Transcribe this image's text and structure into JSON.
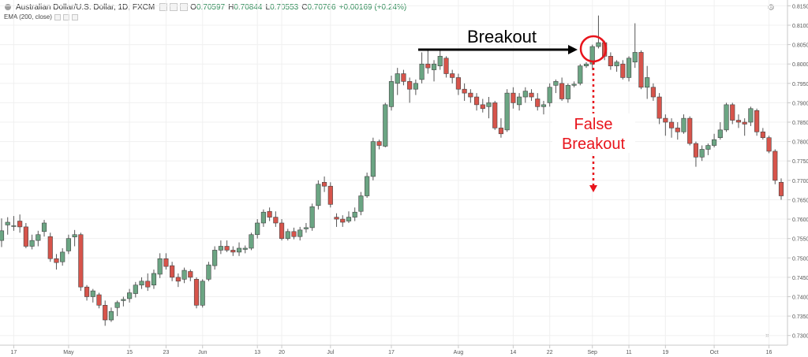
{
  "header": {
    "symbol": "Australian Dollar/U.S. Dollar, 1D, FXCM",
    "o_label": "O",
    "o": "0.70597",
    "h_label": "H",
    "h": "0.70844",
    "l_label": "L",
    "l": "0.70553",
    "c_label": "C",
    "c": "0.70766",
    "change": "+0.00169 (+0.24%)"
  },
  "indicator": {
    "label": "EMA (200, close)"
  },
  "icons": {
    "settings": "gear-icon",
    "scroll": "double-chevron-right-icon"
  },
  "colors": {
    "up": "#6ba583",
    "down": "#d7544b",
    "arrow_black": "#000000",
    "arrow_red": "#e8141c",
    "grid": "#f0f0f0"
  },
  "chart_data": {
    "type": "candlestick",
    "ylim": [
      0.7275,
      0.8165
    ],
    "yticks": [
      "0.81500",
      "0.81000",
      "0.80500",
      "0.80000",
      "0.79500",
      "0.79000",
      "0.78500",
      "0.78000",
      "0.77500",
      "0.77000",
      "0.76500",
      "0.76000",
      "0.75500",
      "0.75000",
      "0.74500",
      "0.74000",
      "0.73500",
      "0.73000"
    ],
    "xticks": [
      "17",
      "May",
      "15",
      "23",
      "Jun",
      "13",
      "20",
      "Jul",
      "17",
      "Aug",
      "14",
      "22",
      "Sep",
      "11",
      "19",
      "Oct",
      "16",
      "24"
    ],
    "annotations": [
      {
        "text": "Breakout"
      },
      {
        "text_lines": [
          "False",
          "Breakout"
        ]
      }
    ],
    "candles": [
      {
        "o": 0.7545,
        "h": 0.7602,
        "l": 0.7528,
        "c": 0.757
      },
      {
        "o": 0.7585,
        "h": 0.7605,
        "l": 0.756,
        "c": 0.7592
      },
      {
        "o": 0.7581,
        "h": 0.7608,
        "l": 0.757,
        "c": 0.7583
      },
      {
        "o": 0.7595,
        "h": 0.7612,
        "l": 0.7565,
        "c": 0.758
      },
      {
        "o": 0.758,
        "h": 0.759,
        "l": 0.7525,
        "c": 0.753
      },
      {
        "o": 0.753,
        "h": 0.756,
        "l": 0.7522,
        "c": 0.7545
      },
      {
        "o": 0.7545,
        "h": 0.757,
        "l": 0.753,
        "c": 0.756
      },
      {
        "o": 0.7568,
        "h": 0.7598,
        "l": 0.7555,
        "c": 0.759
      },
      {
        "o": 0.7555,
        "h": 0.7565,
        "l": 0.749,
        "c": 0.7498
      },
      {
        "o": 0.7498,
        "h": 0.751,
        "l": 0.747,
        "c": 0.7488
      },
      {
        "o": 0.749,
        "h": 0.7525,
        "l": 0.748,
        "c": 0.7515
      },
      {
        "o": 0.7518,
        "h": 0.756,
        "l": 0.751,
        "c": 0.755
      },
      {
        "o": 0.7554,
        "h": 0.7572,
        "l": 0.753,
        "c": 0.756
      },
      {
        "o": 0.756,
        "h": 0.7565,
        "l": 0.7415,
        "c": 0.7425
      },
      {
        "o": 0.7425,
        "h": 0.743,
        "l": 0.739,
        "c": 0.74
      },
      {
        "o": 0.74,
        "h": 0.742,
        "l": 0.7385,
        "c": 0.7415
      },
      {
        "o": 0.7405,
        "h": 0.741,
        "l": 0.737,
        "c": 0.7378
      },
      {
        "o": 0.7378,
        "h": 0.739,
        "l": 0.7325,
        "c": 0.734
      },
      {
        "o": 0.734,
        "h": 0.7372,
        "l": 0.7335,
        "c": 0.7362
      },
      {
        "o": 0.7372,
        "h": 0.739,
        "l": 0.735,
        "c": 0.7385
      },
      {
        "o": 0.739,
        "h": 0.74,
        "l": 0.7375,
        "c": 0.7393
      },
      {
        "o": 0.7395,
        "h": 0.742,
        "l": 0.7385,
        "c": 0.741
      },
      {
        "o": 0.7408,
        "h": 0.7438,
        "l": 0.7398,
        "c": 0.743
      },
      {
        "o": 0.743,
        "h": 0.745,
        "l": 0.742,
        "c": 0.744
      },
      {
        "o": 0.744,
        "h": 0.746,
        "l": 0.7415,
        "c": 0.7425
      },
      {
        "o": 0.743,
        "h": 0.747,
        "l": 0.742,
        "c": 0.746
      },
      {
        "o": 0.7458,
        "h": 0.7512,
        "l": 0.7448,
        "c": 0.7498
      },
      {
        "o": 0.7498,
        "h": 0.7512,
        "l": 0.747,
        "c": 0.7478
      },
      {
        "o": 0.748,
        "h": 0.749,
        "l": 0.744,
        "c": 0.745
      },
      {
        "o": 0.745,
        "h": 0.746,
        "l": 0.7425,
        "c": 0.744
      },
      {
        "o": 0.7445,
        "h": 0.7475,
        "l": 0.7435,
        "c": 0.7468
      },
      {
        "o": 0.7465,
        "h": 0.747,
        "l": 0.744,
        "c": 0.745
      },
      {
        "o": 0.7445,
        "h": 0.745,
        "l": 0.737,
        "c": 0.7378
      },
      {
        "o": 0.7378,
        "h": 0.7445,
        "l": 0.7372,
        "c": 0.744
      },
      {
        "o": 0.7445,
        "h": 0.749,
        "l": 0.744,
        "c": 0.7482
      },
      {
        "o": 0.748,
        "h": 0.753,
        "l": 0.747,
        "c": 0.752
      },
      {
        "o": 0.752,
        "h": 0.7545,
        "l": 0.751,
        "c": 0.753
      },
      {
        "o": 0.753,
        "h": 0.7545,
        "l": 0.7515,
        "c": 0.752
      },
      {
        "o": 0.752,
        "h": 0.753,
        "l": 0.7505,
        "c": 0.7515
      },
      {
        "o": 0.7515,
        "h": 0.754,
        "l": 0.7505,
        "c": 0.7525
      },
      {
        "o": 0.7522,
        "h": 0.7532,
        "l": 0.7512,
        "c": 0.7525
      },
      {
        "o": 0.7525,
        "h": 0.7565,
        "l": 0.752,
        "c": 0.756
      },
      {
        "o": 0.756,
        "h": 0.76,
        "l": 0.755,
        "c": 0.759
      },
      {
        "o": 0.759,
        "h": 0.7625,
        "l": 0.758,
        "c": 0.7618
      },
      {
        "o": 0.762,
        "h": 0.763,
        "l": 0.7595,
        "c": 0.7605
      },
      {
        "o": 0.7605,
        "h": 0.762,
        "l": 0.758,
        "c": 0.759
      },
      {
        "o": 0.759,
        "h": 0.76,
        "l": 0.7545,
        "c": 0.755
      },
      {
        "o": 0.755,
        "h": 0.7575,
        "l": 0.7545,
        "c": 0.7568
      },
      {
        "o": 0.7568,
        "h": 0.7578,
        "l": 0.7548,
        "c": 0.7555
      },
      {
        "o": 0.7555,
        "h": 0.758,
        "l": 0.7545,
        "c": 0.7572
      },
      {
        "o": 0.7575,
        "h": 0.759,
        "l": 0.7565,
        "c": 0.7578
      },
      {
        "o": 0.7578,
        "h": 0.764,
        "l": 0.757,
        "c": 0.7632
      },
      {
        "o": 0.7635,
        "h": 0.77,
        "l": 0.7625,
        "c": 0.769
      },
      {
        "o": 0.7695,
        "h": 0.771,
        "l": 0.767,
        "c": 0.7685
      },
      {
        "o": 0.7685,
        "h": 0.7695,
        "l": 0.763,
        "c": 0.7638
      },
      {
        "o": 0.7605,
        "h": 0.7615,
        "l": 0.758,
        "c": 0.76
      },
      {
        "o": 0.76,
        "h": 0.761,
        "l": 0.758,
        "c": 0.7592
      },
      {
        "o": 0.7595,
        "h": 0.762,
        "l": 0.759,
        "c": 0.7605
      },
      {
        "o": 0.7605,
        "h": 0.763,
        "l": 0.7595,
        "c": 0.7618
      },
      {
        "o": 0.762,
        "h": 0.767,
        "l": 0.761,
        "c": 0.766
      },
      {
        "o": 0.766,
        "h": 0.772,
        "l": 0.7655,
        "c": 0.771
      },
      {
        "o": 0.771,
        "h": 0.781,
        "l": 0.77,
        "c": 0.78
      },
      {
        "o": 0.78,
        "h": 0.7805,
        "l": 0.778,
        "c": 0.779
      },
      {
        "o": 0.7788,
        "h": 0.79,
        "l": 0.7785,
        "c": 0.7895
      },
      {
        "o": 0.789,
        "h": 0.797,
        "l": 0.788,
        "c": 0.7955
      },
      {
        "o": 0.795,
        "h": 0.799,
        "l": 0.792,
        "c": 0.7975
      },
      {
        "o": 0.7975,
        "h": 0.7985,
        "l": 0.7945,
        "c": 0.7955
      },
      {
        "o": 0.7955,
        "h": 0.7965,
        "l": 0.79,
        "c": 0.7935
      },
      {
        "o": 0.7935,
        "h": 0.796,
        "l": 0.792,
        "c": 0.795
      },
      {
        "o": 0.796,
        "h": 0.803,
        "l": 0.795,
        "c": 0.8
      },
      {
        "o": 0.8,
        "h": 0.804,
        "l": 0.7975,
        "c": 0.799
      },
      {
        "o": 0.7985,
        "h": 0.801,
        "l": 0.7955,
        "c": 0.8
      },
      {
        "o": 0.7995,
        "h": 0.804,
        "l": 0.7985,
        "c": 0.802
      },
      {
        "o": 0.8015,
        "h": 0.802,
        "l": 0.7965,
        "c": 0.7975
      },
      {
        "o": 0.7975,
        "h": 0.7985,
        "l": 0.795,
        "c": 0.7965
      },
      {
        "o": 0.7965,
        "h": 0.7975,
        "l": 0.792,
        "c": 0.7935
      },
      {
        "o": 0.7935,
        "h": 0.795,
        "l": 0.7905,
        "c": 0.7925
      },
      {
        "o": 0.7925,
        "h": 0.7935,
        "l": 0.79,
        "c": 0.7915
      },
      {
        "o": 0.7915,
        "h": 0.7925,
        "l": 0.788,
        "c": 0.7895
      },
      {
        "o": 0.7895,
        "h": 0.791,
        "l": 0.7875,
        "c": 0.7885
      },
      {
        "o": 0.789,
        "h": 0.7915,
        "l": 0.786,
        "c": 0.79
      },
      {
        "o": 0.79,
        "h": 0.7905,
        "l": 0.783,
        "c": 0.7835
      },
      {
        "o": 0.7835,
        "h": 0.786,
        "l": 0.781,
        "c": 0.782
      },
      {
        "o": 0.783,
        "h": 0.7935,
        "l": 0.7825,
        "c": 0.7925
      },
      {
        "o": 0.7925,
        "h": 0.794,
        "l": 0.7885,
        "c": 0.79
      },
      {
        "o": 0.7895,
        "h": 0.7925,
        "l": 0.788,
        "c": 0.7915
      },
      {
        "o": 0.7915,
        "h": 0.794,
        "l": 0.79,
        "c": 0.793
      },
      {
        "o": 0.7925,
        "h": 0.7935,
        "l": 0.7905,
        "c": 0.7915
      },
      {
        "o": 0.791,
        "h": 0.7925,
        "l": 0.788,
        "c": 0.789
      },
      {
        "o": 0.789,
        "h": 0.7905,
        "l": 0.787,
        "c": 0.7895
      },
      {
        "o": 0.79,
        "h": 0.795,
        "l": 0.789,
        "c": 0.794
      },
      {
        "o": 0.7945,
        "h": 0.796,
        "l": 0.7925,
        "c": 0.7955
      },
      {
        "o": 0.795,
        "h": 0.7965,
        "l": 0.7905,
        "c": 0.791
      },
      {
        "o": 0.791,
        "h": 0.795,
        "l": 0.79,
        "c": 0.7945
      },
      {
        "o": 0.7945,
        "h": 0.7955,
        "l": 0.794,
        "c": 0.7948
      },
      {
        "o": 0.795,
        "h": 0.8,
        "l": 0.7945,
        "c": 0.7995
      },
      {
        "o": 0.7995,
        "h": 0.8005,
        "l": 0.799,
        "c": 0.8
      },
      {
        "o": 0.8,
        "h": 0.805,
        "l": 0.7985,
        "c": 0.8045
      },
      {
        "o": 0.8045,
        "h": 0.8125,
        "l": 0.804,
        "c": 0.8055
      },
      {
        "o": 0.8055,
        "h": 0.806,
        "l": 0.801,
        "c": 0.802
      },
      {
        "o": 0.802,
        "h": 0.803,
        "l": 0.7985,
        "c": 0.7995
      },
      {
        "o": 0.7995,
        "h": 0.801,
        "l": 0.798,
        "c": 0.8005
      },
      {
        "o": 0.8,
        "h": 0.801,
        "l": 0.796,
        "c": 0.7965
      },
      {
        "o": 0.7965,
        "h": 0.802,
        "l": 0.7955,
        "c": 0.8015
      },
      {
        "o": 0.8005,
        "h": 0.8105,
        "l": 0.799,
        "c": 0.803
      },
      {
        "o": 0.803,
        "h": 0.8035,
        "l": 0.7935,
        "c": 0.794
      },
      {
        "o": 0.794,
        "h": 0.7995,
        "l": 0.791,
        "c": 0.7965
      },
      {
        "o": 0.794,
        "h": 0.795,
        "l": 0.7905,
        "c": 0.7915
      },
      {
        "o": 0.7915,
        "h": 0.7925,
        "l": 0.7845,
        "c": 0.786
      },
      {
        "o": 0.786,
        "h": 0.787,
        "l": 0.7815,
        "c": 0.785
      },
      {
        "o": 0.785,
        "h": 0.786,
        "l": 0.781,
        "c": 0.7835
      },
      {
        "o": 0.7835,
        "h": 0.785,
        "l": 0.7805,
        "c": 0.7825
      },
      {
        "o": 0.7825,
        "h": 0.787,
        "l": 0.782,
        "c": 0.786
      },
      {
        "o": 0.786,
        "h": 0.7865,
        "l": 0.779,
        "c": 0.7795
      },
      {
        "o": 0.7795,
        "h": 0.78,
        "l": 0.7735,
        "c": 0.776
      },
      {
        "o": 0.776,
        "h": 0.779,
        "l": 0.775,
        "c": 0.778
      },
      {
        "o": 0.778,
        "h": 0.7795,
        "l": 0.7765,
        "c": 0.779
      },
      {
        "o": 0.779,
        "h": 0.782,
        "l": 0.7785,
        "c": 0.7805
      },
      {
        "o": 0.781,
        "h": 0.785,
        "l": 0.7805,
        "c": 0.783
      },
      {
        "o": 0.783,
        "h": 0.79,
        "l": 0.7825,
        "c": 0.7895
      },
      {
        "o": 0.7895,
        "h": 0.79,
        "l": 0.7845,
        "c": 0.7855
      },
      {
        "o": 0.7855,
        "h": 0.787,
        "l": 0.7835,
        "c": 0.785
      },
      {
        "o": 0.785,
        "h": 0.786,
        "l": 0.7815,
        "c": 0.7845
      },
      {
        "o": 0.785,
        "h": 0.789,
        "l": 0.784,
        "c": 0.7885
      },
      {
        "o": 0.788,
        "h": 0.7885,
        "l": 0.7815,
        "c": 0.7825
      },
      {
        "o": 0.7825,
        "h": 0.7835,
        "l": 0.7805,
        "c": 0.781
      },
      {
        "o": 0.781,
        "h": 0.7815,
        "l": 0.777,
        "c": 0.7775
      },
      {
        "o": 0.7775,
        "h": 0.778,
        "l": 0.769,
        "c": 0.77
      },
      {
        "o": 0.7695,
        "h": 0.7705,
        "l": 0.765,
        "c": 0.766
      }
    ]
  }
}
